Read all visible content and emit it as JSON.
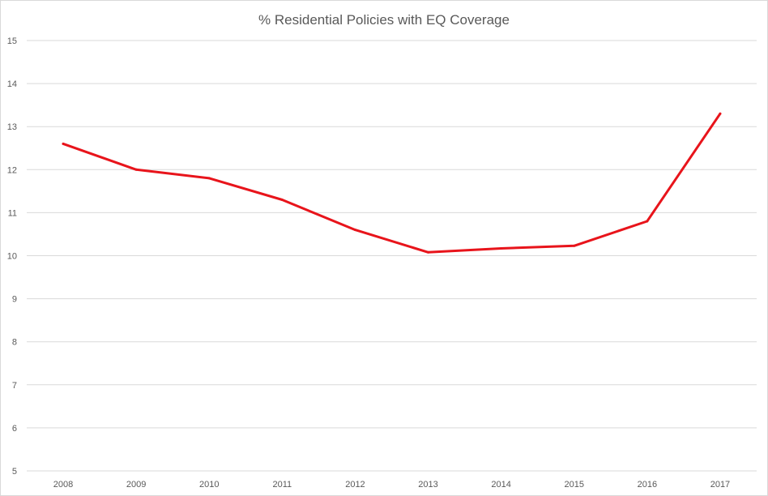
{
  "chart_data": {
    "type": "line",
    "title": "% Residential Policies with EQ Coverage",
    "categories": [
      "2008",
      "2009",
      "2010",
      "2011",
      "2012",
      "2013",
      "2014",
      "2015",
      "2016",
      "2017"
    ],
    "series": [
      {
        "values": [
          12.6,
          12.0,
          11.8,
          11.3,
          10.6,
          10.08,
          10.17,
          10.23,
          10.8,
          13.3
        ],
        "color": "#e8141b"
      }
    ],
    "y_ticks": [
      "5",
      "6",
      "7",
      "8",
      "9",
      "10",
      "11",
      "12",
      "13",
      "14",
      "15"
    ],
    "ylim": [
      5,
      15
    ],
    "grid": true,
    "legend": "none"
  }
}
